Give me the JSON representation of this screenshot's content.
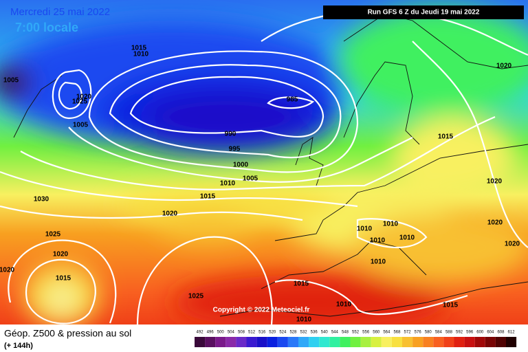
{
  "header": {
    "date": "Mercredi 25 mai 2022",
    "time": "7:00 locale",
    "run": "Run GFS 6 Z du Jeudi 19 mai 2022"
  },
  "isobar_labels": [
    "1015",
    "1010",
    "1005",
    "1020",
    "1025",
    "1005",
    "985",
    "990",
    "995",
    "1000",
    "1005",
    "1010",
    "1015",
    "1020",
    "1030",
    "1025",
    "1020",
    "1015",
    "1020",
    "1025",
    "1015",
    "1010",
    "1010",
    "1015",
    "1010",
    "1010",
    "1010",
    "1010",
    "1010",
    "1020",
    "1020",
    "1020",
    "1015",
    "1020"
  ],
  "copyright": "Copyright © 2022 Meteociel.fr",
  "footer": {
    "title": "Géop. Z500 & pression au sol",
    "lead": "(+ 144h)"
  },
  "scale": {
    "labels": [
      492,
      496,
      500,
      504,
      508,
      512,
      516,
      520,
      524,
      528,
      532,
      536,
      540,
      544,
      548,
      552,
      556,
      560,
      564,
      568,
      572,
      576,
      580,
      584,
      588,
      592,
      596,
      600,
      604,
      608,
      612
    ],
    "colors": [
      "#3a0a3a",
      "#5a1060",
      "#7a1a8a",
      "#8a2aa8",
      "#6a2ac8",
      "#3a1ad0",
      "#1a10c8",
      "#0a20e0",
      "#1a48f0",
      "#2a78f8",
      "#30a8f8",
      "#30d0f0",
      "#30e8d0",
      "#30f0a0",
      "#40f060",
      "#70f040",
      "#a8f040",
      "#d8f040",
      "#f8f060",
      "#f8e040",
      "#f8c030",
      "#f8a020",
      "#f88020",
      "#f86020",
      "#f04018",
      "#e02010",
      "#c81010",
      "#a00808",
      "#780404",
      "#500202",
      "#200000"
    ]
  }
}
